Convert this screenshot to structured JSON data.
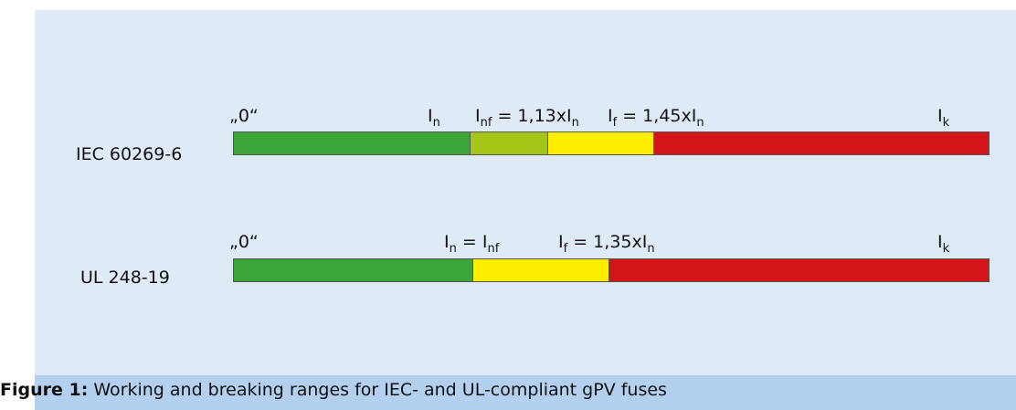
{
  "caption": {
    "prefix": "Figure 1:",
    "text": " Working and breaking ranges for IEC- and UL-compliant gPV fuses"
  },
  "rows": [
    {
      "standard": "IEC 60269-6",
      "zero_label": "„0“",
      "labels": {
        "in_main": "I",
        "in_sub": "n",
        "inf_main": "I",
        "inf_sub": "nf",
        "inf_eq": " = 1,13xI",
        "inf_eq_sub": "n",
        "if_main": "I",
        "if_sub": "f",
        "if_eq": " = 1,45xI",
        "if_eq_sub": "n",
        "ik_main": "I",
        "ik_sub": "k"
      },
      "segments": [
        {
          "name": "working-range",
          "fraction": 0.314,
          "color": "#3ca537"
        },
        {
          "name": "conventional-non-fusing",
          "fraction": 0.103,
          "color": "#a3c617"
        },
        {
          "name": "conventional-fusing",
          "fraction": 0.14,
          "color": "#ffee00"
        },
        {
          "name": "breaking-range",
          "fraction": 0.443,
          "color": "#d31518"
        }
      ]
    },
    {
      "standard": "UL 248-19",
      "zero_label": "„0“",
      "labels": {
        "in_main": "I",
        "in_sub": "n",
        "in_eq": " = I",
        "in_eq_sub": "nf",
        "if_main": "I",
        "if_sub": "f",
        "if_eq": " = 1,35xI",
        "if_eq_sub": "n",
        "ik_main": "I",
        "ik_sub": "k"
      },
      "segments": [
        {
          "name": "working-range",
          "fraction": 0.317,
          "color": "#3ca537"
        },
        {
          "name": "conventional-fusing",
          "fraction": 0.18,
          "color": "#ffee00"
        },
        {
          "name": "breaking-range",
          "fraction": 0.503,
          "color": "#d31518"
        }
      ]
    }
  ]
}
